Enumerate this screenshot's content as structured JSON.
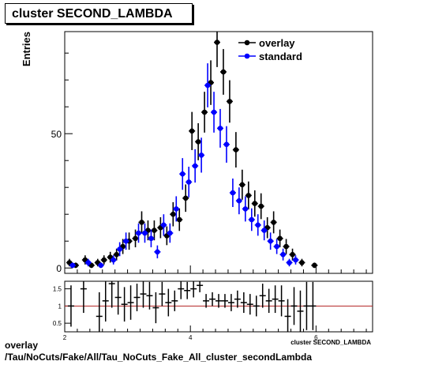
{
  "title": "cluster SECOND_LAMBDA",
  "footer": {
    "line1": "overlay",
    "line2": "/Tau/NoCuts/Fake/All/Tau_NoCuts_Fake_All_cluster_secondLambda"
  },
  "chart_data": [
    {
      "type": "scatter",
      "title": "cluster SECOND_LAMBDA",
      "ylabel": "Entries",
      "xlim": [
        2,
        6.9
      ],
      "ylim": [
        -2,
        88
      ],
      "yticks": [
        0,
        50
      ],
      "legend": "top-right",
      "series": [
        {
          "name": "overlay",
          "color": "#000000",
          "x": [
            2.075,
            2.175,
            2.325,
            2.425,
            2.525,
            2.625,
            2.725,
            2.825,
            2.925,
            3.025,
            3.125,
            3.225,
            3.325,
            3.425,
            3.525,
            3.625,
            3.725,
            3.825,
            3.925,
            4.025,
            4.125,
            4.225,
            4.325,
            4.425,
            4.525,
            4.625,
            4.725,
            4.825,
            4.925,
            5.025,
            5.125,
            5.225,
            5.325,
            5.425,
            5.525,
            5.625,
            5.775,
            5.975
          ],
          "y": [
            2,
            1,
            3,
            1,
            2,
            3,
            4,
            5,
            8,
            10,
            11,
            17,
            14,
            14,
            15,
            12,
            20,
            18,
            26,
            51,
            47,
            58,
            69,
            84,
            73,
            62,
            44,
            31,
            27,
            24,
            23,
            15,
            17,
            11,
            8,
            5,
            2,
            1
          ],
          "err": [
            1.4,
            1,
            1.7,
            1,
            1.4,
            1.7,
            2,
            2.2,
            2.8,
            3.2,
            3.3,
            4.1,
            3.7,
            3.7,
            3.9,
            3.5,
            4.5,
            4.2,
            5.1,
            7.1,
            6.9,
            7.6,
            8.3,
            9.2,
            8.5,
            7.9,
            6.6,
            5.6,
            5.2,
            4.9,
            4.8,
            3.9,
            4.1,
            3.3,
            2.8,
            2.2,
            1.4,
            1
          ]
        },
        {
          "name": "standard",
          "color": "#0000ff",
          "x": [
            2.125,
            2.375,
            2.575,
            2.775,
            2.875,
            2.975,
            3.175,
            3.275,
            3.375,
            3.475,
            3.575,
            3.675,
            3.775,
            3.875,
            3.975,
            4.075,
            4.175,
            4.275,
            4.375,
            4.475,
            4.575,
            4.675,
            4.775,
            4.875,
            4.975,
            5.075,
            5.175,
            5.275,
            5.375,
            5.475,
            5.575,
            5.675
          ],
          "y": [
            1,
            2,
            1,
            3,
            7,
            10,
            13,
            13,
            11,
            6,
            16,
            13,
            22,
            35,
            32,
            38,
            42,
            68,
            58,
            52,
            46,
            28,
            25,
            22,
            18,
            16,
            14,
            10,
            8,
            5,
            2,
            3
          ],
          "err": [
            1,
            1.4,
            1,
            1.7,
            2.6,
            3.2,
            3.6,
            3.6,
            3.3,
            2.4,
            4,
            3.6,
            4.7,
            5.9,
            5.7,
            6.2,
            6.5,
            8.2,
            7.6,
            7.2,
            6.8,
            5.3,
            5,
            4.7,
            4.2,
            4,
            3.7,
            3.2,
            2.8,
            2.2,
            1.4,
            1.7
          ]
        }
      ]
    },
    {
      "type": "scatter",
      "title": "",
      "xlabel": "cluster SECOND_LAMBDA",
      "xlim": [
        2,
        6.9
      ],
      "ylim": [
        0.25,
        1.72
      ],
      "xticks": [
        2,
        4,
        6
      ],
      "yticks": [
        0.5,
        1,
        1.5
      ],
      "reference_line": 1,
      "reference_color": "#b22222",
      "series": [
        {
          "name": "ratio",
          "color": "#000000",
          "x": [
            2.1,
            2.3,
            2.55,
            2.65,
            2.75,
            2.85,
            2.95,
            3.05,
            3.15,
            3.25,
            3.35,
            3.45,
            3.55,
            3.65,
            3.75,
            3.85,
            3.95,
            4.05,
            4.15,
            4.25,
            4.35,
            4.45,
            4.55,
            4.65,
            4.75,
            4.85,
            4.95,
            5.05,
            5.15,
            5.25,
            5.35,
            5.45,
            5.55,
            5.65,
            5.75,
            5.85,
            5.95
          ],
          "y": [
            1.0,
            1.5,
            0.7,
            1.15,
            1.65,
            1.25,
            1.05,
            1.1,
            1.25,
            1.35,
            1.3,
            0.95,
            1.35,
            1.1,
            1.15,
            1.5,
            1.45,
            1.5,
            1.6,
            1.15,
            1.2,
            1.15,
            1.15,
            1.1,
            1.2,
            1.1,
            1.05,
            1.0,
            1.3,
            1.15,
            1.2,
            1.15,
            0.7,
            1.0,
            0.85,
            1.0,
            1.0
          ],
          "err": [
            0.6,
            0.7,
            0.7,
            0.6,
            0.7,
            0.5,
            0.5,
            0.5,
            0.4,
            0.4,
            0.4,
            0.45,
            0.35,
            0.4,
            0.3,
            0.3,
            0.25,
            0.25,
            0.2,
            0.2,
            0.2,
            0.2,
            0.2,
            0.25,
            0.25,
            0.3,
            0.3,
            0.3,
            0.35,
            0.35,
            0.4,
            0.45,
            0.5,
            0.55,
            0.6,
            0.7,
            0.7
          ]
        }
      ]
    }
  ]
}
